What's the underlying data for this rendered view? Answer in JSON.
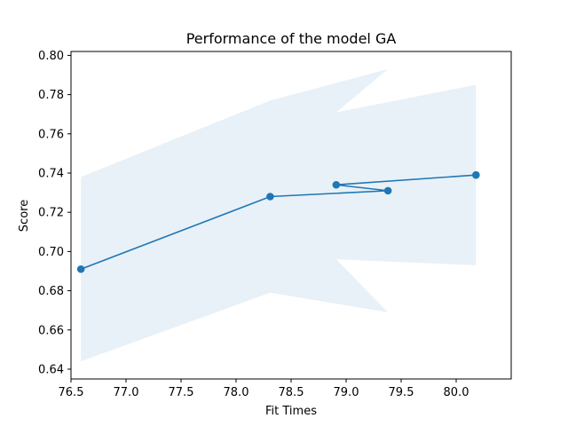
{
  "chart_data": {
    "type": "line",
    "title": "Performance of the model GA",
    "xlabel": "Fit Times",
    "ylabel": "Score",
    "xlim": [
      76.5,
      80.5
    ],
    "ylim": [
      0.635,
      0.802
    ],
    "xticks": [
      "76.5",
      "77.0",
      "77.5",
      "78.0",
      "78.5",
      "79.0",
      "79.5",
      "80.0"
    ],
    "yticks": [
      "0.64",
      "0.66",
      "0.68",
      "0.70",
      "0.72",
      "0.74",
      "0.76",
      "0.78",
      "0.80"
    ],
    "grid": false,
    "series": [
      {
        "color": "#1f77b4",
        "points": [
          {
            "x": 76.59,
            "y": 0.691
          },
          {
            "x": 78.31,
            "y": 0.728
          },
          {
            "x": 79.38,
            "y": 0.731
          },
          {
            "x": 78.91,
            "y": 0.734
          },
          {
            "x": 80.18,
            "y": 0.739
          }
        ]
      }
    ],
    "band": {
      "color": "#1f77b4",
      "opacity": 0.1,
      "points": [
        {
          "x": 76.59,
          "lower": 0.644,
          "upper": 0.738
        },
        {
          "x": 78.31,
          "lower": 0.679,
          "upper": 0.777
        },
        {
          "x": 79.38,
          "lower": 0.669,
          "upper": 0.793
        },
        {
          "x": 78.91,
          "lower": 0.696,
          "upper": 0.771
        },
        {
          "x": 80.18,
          "lower": 0.693,
          "upper": 0.785
        }
      ]
    }
  }
}
